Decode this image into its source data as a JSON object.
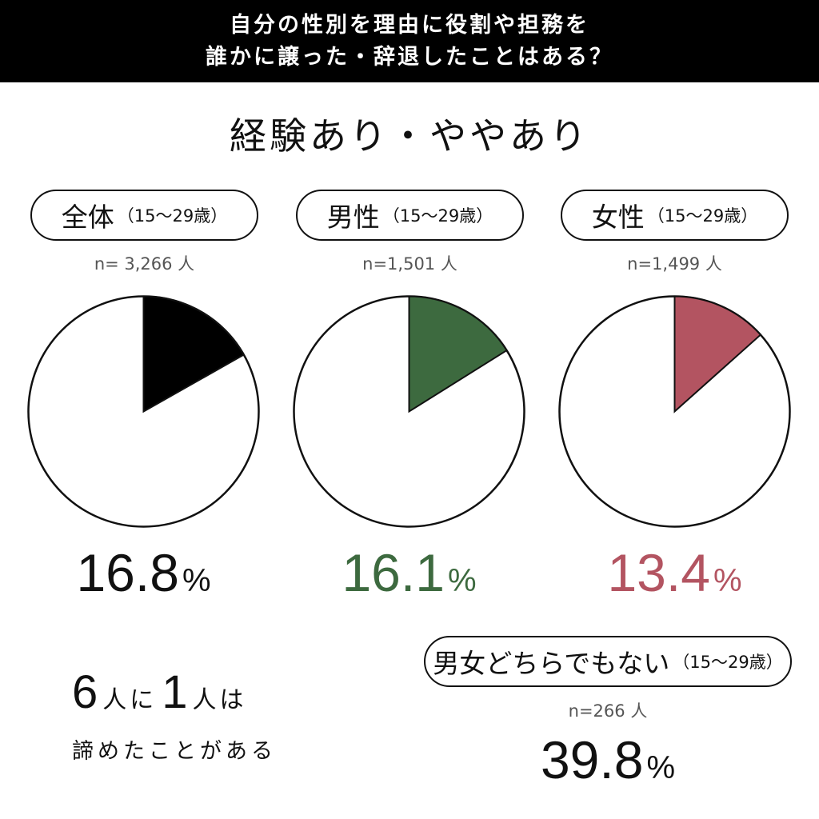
{
  "header": {
    "line1": "自分の性別を理由に役割や担務を",
    "line2": "誰かに譲った・辞退したことはある？"
  },
  "subtitle": "経験あり・ややあり",
  "percent_symbol": "%",
  "groups": [
    {
      "label": "全体",
      "age": "（15〜29歳）",
      "n": "n= 3,266 人",
      "value_text": "16.8",
      "color": "#000000"
    },
    {
      "label": "男性",
      "age": "（15〜29歳）",
      "n": "n=1,501 人",
      "value_text": "16.1",
      "color": "#3d6a3f"
    },
    {
      "label": "女性",
      "age": "（15〜29歳）",
      "n": "n=1,499 人",
      "value_text": "13.4",
      "color": "#b35461"
    }
  ],
  "other_group": {
    "label": "男女どちらでもない",
    "age": "（15〜29歳）",
    "n": "n=266 人",
    "value_text": "39.8"
  },
  "note": {
    "num1": "6",
    "word1": "人に",
    "num2": "1",
    "word2": "人は",
    "line2": "諦めたことがある"
  },
  "chart_data": {
    "type": "pie",
    "title": "自分の性別を理由に役割や担務を誰かに譲った・辞退したことはある？",
    "subtitle": "経験あり・ややあり",
    "unit": "%",
    "series": [
      {
        "name": "全体（15〜29歳）",
        "n": 3266,
        "value": 16.8
      },
      {
        "name": "男性（15〜29歳）",
        "n": 1501,
        "value": 16.1
      },
      {
        "name": "女性（15〜29歳）",
        "n": 1499,
        "value": 13.4
      },
      {
        "name": "男女どちらでもない（15〜29歳）",
        "n": 266,
        "value": 39.8
      }
    ]
  }
}
